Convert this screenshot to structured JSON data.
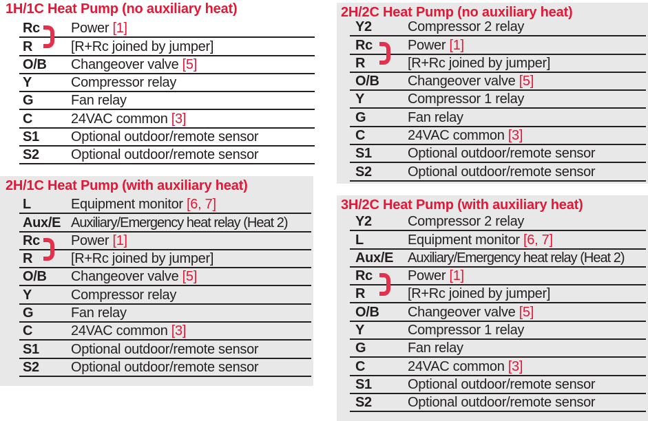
{
  "colors": {
    "accent_red": "#e31837",
    "jumper_red": "#e4304a",
    "text_black": "#231f20",
    "panel_gray": "#e8e8e9",
    "rule_black": "#231f20"
  },
  "tables": [
    {
      "title": "1H/1C Heat Pump (no auxiliary heat)",
      "rows": [
        {
          "label": "Rc",
          "desc": "Power",
          "ref": "[1]",
          "jumper": true
        },
        {
          "label": "R",
          "desc": "[R+Rc joined by jumper]"
        },
        {
          "label": "O/B",
          "desc": "Changeover valve",
          "ref": "[5]"
        },
        {
          "label": "Y",
          "desc": "Compressor relay"
        },
        {
          "label": "G",
          "desc": "Fan relay"
        },
        {
          "label": "C",
          "desc": "24VAC common",
          "ref": "[3]"
        },
        {
          "label": "S1",
          "desc": "Optional outdoor/remote sensor"
        },
        {
          "label": "S2",
          "desc": "Optional outdoor/remote sensor"
        }
      ]
    },
    {
      "title": "2H/2C Heat Pump (no auxiliary heat)",
      "rows": [
        {
          "label": "Y2",
          "desc": "Compressor 2 relay"
        },
        {
          "label": "Rc",
          "desc": "Power",
          "ref": "[1]",
          "jumper": true
        },
        {
          "label": "R",
          "desc": "[R+Rc joined by jumper]"
        },
        {
          "label": "O/B",
          "desc": "Changeover valve",
          "ref": "[5]"
        },
        {
          "label": "Y",
          "desc": "Compressor 1 relay"
        },
        {
          "label": "G",
          "desc": "Fan relay"
        },
        {
          "label": "C",
          "desc": "24VAC common",
          "ref": "[3]"
        },
        {
          "label": "S1",
          "desc": "Optional outdoor/remote sensor"
        },
        {
          "label": "S2",
          "desc": "Optional outdoor/remote sensor"
        }
      ]
    },
    {
      "title": "2H/1C Heat Pump (with auxiliary heat)",
      "rows": [
        {
          "label": "L",
          "desc": "Equipment monitor",
          "ref": "[6, 7]"
        },
        {
          "label": "Aux/E",
          "desc": "Auxiliary/Emergency heat relay (Heat 2)"
        },
        {
          "label": "Rc",
          "desc": "Power",
          "ref": "[1]",
          "jumper": true
        },
        {
          "label": "R",
          "desc": "[R+Rc joined by jumper]"
        },
        {
          "label": "O/B",
          "desc": "Changeover valve",
          "ref": "[5]"
        },
        {
          "label": "Y",
          "desc": "Compressor relay"
        },
        {
          "label": "G",
          "desc": "Fan relay"
        },
        {
          "label": "C",
          "desc": "24VAC common",
          "ref": "[3]"
        },
        {
          "label": "S1",
          "desc": "Optional outdoor/remote sensor"
        },
        {
          "label": "S2",
          "desc": "Optional outdoor/remote sensor"
        }
      ]
    },
    {
      "title": "3H/2C Heat Pump (with auxiliary heat)",
      "rows": [
        {
          "label": "Y2",
          "desc": "Compressor 2 relay"
        },
        {
          "label": "L",
          "desc": "Equipment monitor",
          "ref": "[6, 7]"
        },
        {
          "label": "Aux/E",
          "desc": "Auxiliary/Emergency heat relay (Heat 2)"
        },
        {
          "label": "Rc",
          "desc": "Power",
          "ref": "[1]",
          "jumper": true
        },
        {
          "label": "R",
          "desc": "[R+Rc joined by jumper]"
        },
        {
          "label": "O/B",
          "desc": "Changeover valve",
          "ref": "[5]"
        },
        {
          "label": "Y",
          "desc": "Compressor 1 relay"
        },
        {
          "label": "G",
          "desc": "Fan relay"
        },
        {
          "label": "C",
          "desc": "24VAC common",
          "ref": "[3]"
        },
        {
          "label": "S1",
          "desc": "Optional outdoor/remote sensor"
        },
        {
          "label": "S2",
          "desc": "Optional outdoor/remote sensor"
        }
      ]
    }
  ]
}
